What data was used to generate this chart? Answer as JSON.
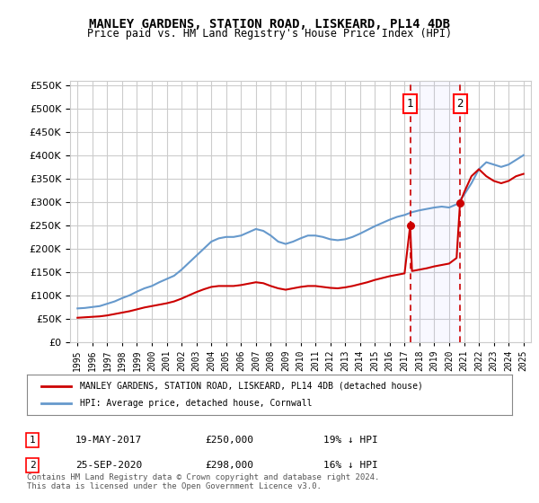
{
  "title": "MANLEY GARDENS, STATION ROAD, LISKEARD, PL14 4DB",
  "subtitle": "Price paid vs. HM Land Registry's House Price Index (HPI)",
  "legend_line1": "MANLEY GARDENS, STATION ROAD, LISKEARD, PL14 4DB (detached house)",
  "legend_line2": "HPI: Average price, detached house, Cornwall",
  "annotation1_label": "1",
  "annotation1_date": "19-MAY-2017",
  "annotation1_price": "£250,000",
  "annotation1_hpi": "19% ↓ HPI",
  "annotation2_label": "2",
  "annotation2_date": "25-SEP-2020",
  "annotation2_price": "£298,000",
  "annotation2_hpi": "16% ↓ HPI",
  "footer": "Contains HM Land Registry data © Crown copyright and database right 2024.\nThis data is licensed under the Open Government Licence v3.0.",
  "vline1_x": 2017.38,
  "vline2_x": 2020.73,
  "price_color": "#cc0000",
  "hpi_color": "#6699cc",
  "vline_color": "#cc0000",
  "grid_color": "#cccccc",
  "background_color": "#ffffff",
  "ylim": [
    0,
    560000
  ],
  "yticks": [
    0,
    50000,
    100000,
    150000,
    200000,
    250000,
    300000,
    350000,
    400000,
    450000,
    500000,
    550000
  ],
  "xlim": [
    1994.5,
    2025.5
  ],
  "hpi_years": [
    1995,
    1995.5,
    1996,
    1996.5,
    1997,
    1997.5,
    1998,
    1998.5,
    1999,
    1999.5,
    2000,
    2000.5,
    2001,
    2001.5,
    2002,
    2002.5,
    2003,
    2003.5,
    2004,
    2004.5,
    2005,
    2005.5,
    2006,
    2006.5,
    2007,
    2007.5,
    2008,
    2008.5,
    2009,
    2009.5,
    2010,
    2010.5,
    2011,
    2011.5,
    2012,
    2012.5,
    2013,
    2013.5,
    2014,
    2014.5,
    2015,
    2015.5,
    2016,
    2016.5,
    2017,
    2017.5,
    2018,
    2018.5,
    2019,
    2019.5,
    2020,
    2020.5,
    2021,
    2021.5,
    2022,
    2022.5,
    2023,
    2023.5,
    2024,
    2024.5,
    2025
  ],
  "hpi_values": [
    72000,
    73000,
    75000,
    77000,
    82000,
    87000,
    94000,
    100000,
    108000,
    115000,
    120000,
    128000,
    135000,
    142000,
    155000,
    170000,
    185000,
    200000,
    215000,
    222000,
    225000,
    225000,
    228000,
    235000,
    242000,
    238000,
    228000,
    215000,
    210000,
    215000,
    222000,
    228000,
    228000,
    225000,
    220000,
    218000,
    220000,
    225000,
    232000,
    240000,
    248000,
    255000,
    262000,
    268000,
    272000,
    278000,
    282000,
    285000,
    288000,
    290000,
    288000,
    295000,
    315000,
    340000,
    370000,
    385000,
    380000,
    375000,
    380000,
    390000,
    400000
  ],
  "price_years": [
    1995,
    1995.5,
    1996,
    1996.5,
    1997,
    1997.5,
    1998,
    1998.5,
    1999,
    1999.5,
    2000,
    2000.5,
    2001,
    2001.5,
    2002,
    2002.5,
    2003,
    2003.5,
    2004,
    2004.5,
    2005,
    2005.5,
    2006,
    2006.5,
    2007,
    2007.5,
    2008,
    2008.5,
    2009,
    2009.5,
    2010,
    2010.5,
    2011,
    2011.5,
    2012,
    2012.5,
    2013,
    2013.5,
    2014,
    2014.5,
    2015,
    2015.5,
    2016,
    2016.5,
    2017,
    2017.38,
    2017.5,
    2018,
    2018.5,
    2019,
    2019.5,
    2020,
    2020.5,
    2020.73,
    2021,
    2021.5,
    2022,
    2022.5,
    2023,
    2023.5,
    2024,
    2024.5,
    2025
  ],
  "price_values": [
    52000,
    53000,
    54000,
    55000,
    57000,
    60000,
    63000,
    66000,
    70000,
    74000,
    77000,
    80000,
    83000,
    87000,
    93000,
    100000,
    107000,
    113000,
    118000,
    120000,
    120000,
    120000,
    122000,
    125000,
    128000,
    126000,
    120000,
    115000,
    112000,
    115000,
    118000,
    120000,
    120000,
    118000,
    116000,
    115000,
    117000,
    120000,
    124000,
    128000,
    133000,
    137000,
    141000,
    144000,
    147000,
    250000,
    152000,
    155000,
    158000,
    162000,
    165000,
    168000,
    180000,
    298000,
    320000,
    355000,
    370000,
    355000,
    345000,
    340000,
    345000,
    355000,
    360000
  ]
}
